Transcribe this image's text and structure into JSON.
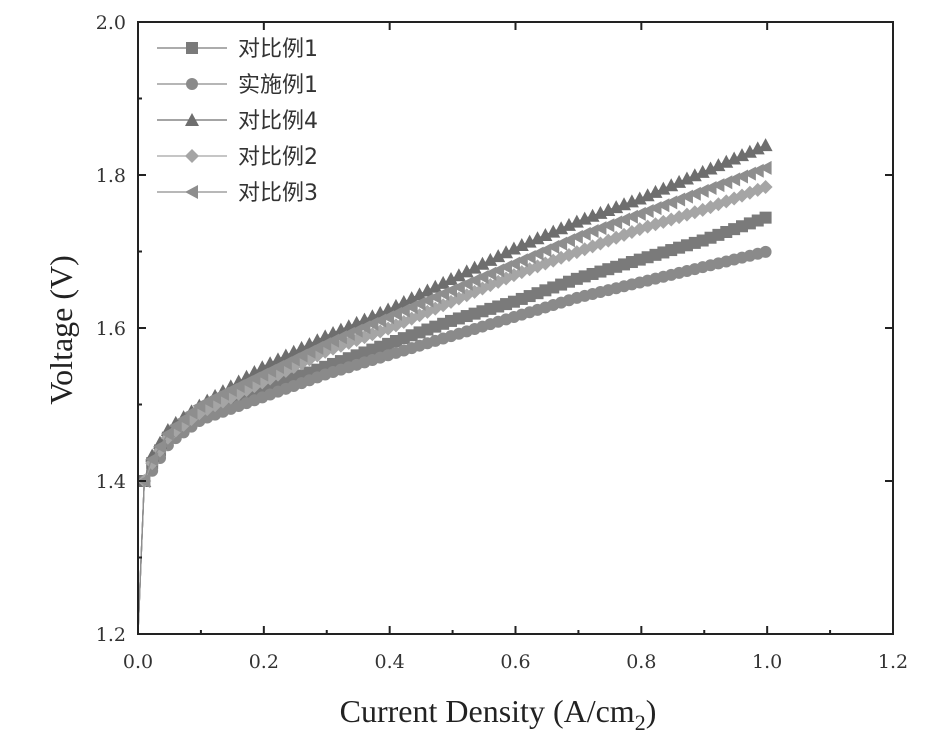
{
  "chart_data": {
    "type": "line",
    "title": "",
    "xlabel": "Current Density (A/cm",
    "xlabel_sub": "2",
    "xlabel_close": ")",
    "ylabel": "Voltage (V)",
    "xlim": [
      0.0,
      1.2
    ],
    "ylim": [
      1.2,
      2.0
    ],
    "xticks": [
      "0.0",
      "0.2",
      "0.4",
      "0.6",
      "0.8",
      "1.0",
      "1.2"
    ],
    "yticks": [
      "1.2",
      "1.4",
      "1.6",
      "1.8",
      "2.0"
    ],
    "grid": false,
    "legend_position": "top-left",
    "x": [
      0.0,
      0.01,
      0.02,
      0.05,
      0.1,
      0.2,
      0.3,
      0.4,
      0.5,
      0.6,
      0.7,
      0.8,
      0.9,
      1.0
    ],
    "series": [
      {
        "name": "对比例1",
        "marker": "square",
        "color": "#7a7a7a",
        "values": [
          1.2,
          1.4,
          1.42,
          1.46,
          1.49,
          1.52,
          1.55,
          1.58,
          1.61,
          1.635,
          1.665,
          1.69,
          1.715,
          1.745
        ]
      },
      {
        "name": "实施例1",
        "marker": "circle",
        "color": "#8a8a8a",
        "values": [
          1.2,
          1.4,
          1.41,
          1.45,
          1.48,
          1.51,
          1.54,
          1.565,
          1.59,
          1.615,
          1.64,
          1.66,
          1.68,
          1.7
        ]
      },
      {
        "name": "对比例4",
        "marker": "triangle-up",
        "color": "#6e6e6e",
        "values": [
          1.2,
          1.4,
          1.43,
          1.47,
          1.5,
          1.55,
          1.59,
          1.625,
          1.665,
          1.705,
          1.74,
          1.77,
          1.805,
          1.84
        ]
      },
      {
        "name": "对比例2",
        "marker": "diamond",
        "color": "#a5a5a5",
        "values": [
          1.2,
          1.4,
          1.42,
          1.46,
          1.49,
          1.53,
          1.57,
          1.6,
          1.635,
          1.67,
          1.7,
          1.73,
          1.755,
          1.785
        ]
      },
      {
        "name": "对比例3",
        "marker": "triangle-left",
        "color": "#8e8e8e",
        "values": [
          1.2,
          1.4,
          1.425,
          1.465,
          1.5,
          1.54,
          1.58,
          1.615,
          1.65,
          1.685,
          1.72,
          1.75,
          1.78,
          1.81
        ]
      }
    ]
  }
}
